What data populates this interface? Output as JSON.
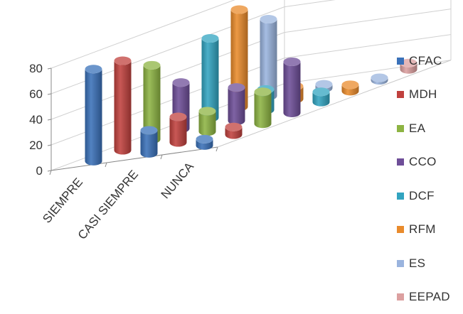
{
  "chart_data": {
    "type": "bar",
    "categories": [
      "SIEMPRE",
      "CASI SIEMPRE",
      "NUNCA"
    ],
    "series": [
      {
        "name": "CFAC",
        "color": "#3A71B9",
        "values": [
          72,
          18,
          5
        ]
      },
      {
        "name": "MDH",
        "color": "#C0413E",
        "values": [
          70,
          20,
          6
        ]
      },
      {
        "name": "EA",
        "color": "#8DB443",
        "values": [
          58,
          16,
          25
        ]
      },
      {
        "name": "CCO",
        "color": "#6E4E98",
        "values": [
          36,
          26,
          40
        ]
      },
      {
        "name": "DCF",
        "color": "#32A4C0",
        "values": [
          62,
          16,
          8
        ]
      },
      {
        "name": "RFM",
        "color": "#E98B2C",
        "values": [
          76,
          10,
          5
        ]
      },
      {
        "name": "ES",
        "color": "#9AB4DE",
        "values": [
          60,
          3,
          2
        ]
      },
      {
        "name": "EEPAD",
        "color": "#DCA0A0",
        "values": [
          0,
          0,
          5
        ]
      }
    ],
    "yticks": [
      0,
      20,
      40,
      60,
      80
    ],
    "ylim": [
      0,
      100
    ],
    "grid": true,
    "legend_position": "right",
    "title": "",
    "xlabel": "",
    "ylabel": ""
  }
}
